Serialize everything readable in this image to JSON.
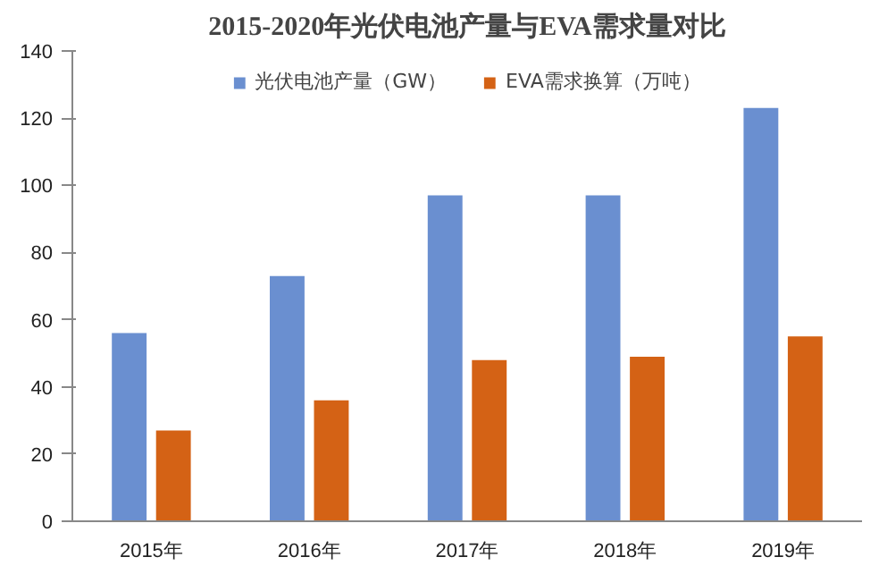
{
  "chart_data": {
    "type": "bar",
    "title": "2015-2020年光伏电池产量与EVA需求量对比",
    "categories": [
      "2015年",
      "2016年",
      "2017年",
      "2018年",
      "2019年"
    ],
    "series": [
      {
        "name": "光伏电池产量（GW）",
        "color": "#6a8fd0",
        "values": [
          56,
          73,
          97,
          97,
          123
        ]
      },
      {
        "name": "EVA需求换算（万吨）",
        "color": "#d46215",
        "values": [
          27,
          36,
          48,
          49,
          55
        ]
      }
    ],
    "ylim": [
      0,
      140
    ],
    "yticks": [
      0,
      20,
      40,
      60,
      80,
      100,
      120,
      140
    ],
    "grid": false,
    "legend": "top"
  }
}
